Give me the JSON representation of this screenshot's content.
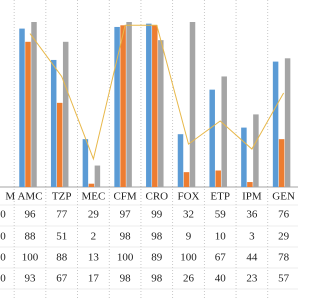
{
  "chart_data": {
    "type": "bar",
    "categories": [
      "AMC",
      "TZP",
      "MEC",
      "CFM",
      "CRO",
      "FOX",
      "ETP",
      "IPM",
      "GEN"
    ],
    "series": [
      {
        "color": "#5b9bd5",
        "values": [
          96,
          77,
          29,
          97,
          99,
          32,
          59,
          36,
          76
        ]
      },
      {
        "color": "#ed7d31",
        "values": [
          88,
          51,
          2,
          98,
          98,
          9,
          10,
          3,
          29
        ]
      },
      {
        "color": "#a5a5a5",
        "values": [
          100,
          88,
          13,
          100,
          89,
          100,
          67,
          44,
          78
        ]
      },
      {
        "type": "line",
        "color": "#e8b84a",
        "values": [
          93,
          67,
          17,
          98,
          98,
          26,
          40,
          23,
          57
        ]
      }
    ],
    "ylim": [
      0,
      100
    ],
    "cropped_column": {
      "category": "M",
      "cells": [
        "0",
        "0",
        "0",
        "0"
      ]
    }
  }
}
